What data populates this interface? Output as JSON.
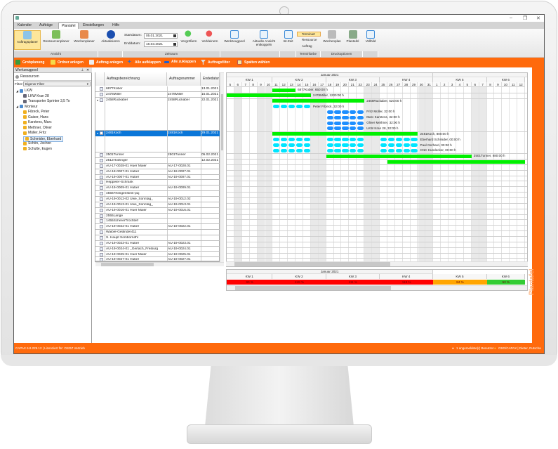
{
  "window": {
    "minimize": "–",
    "restore": "❐",
    "close": "✕"
  },
  "menu": {
    "tabs": [
      "Kalender",
      "Aufträge",
      "Plantafel",
      "Einstellungen",
      "Hilfe"
    ],
    "active": "Plantafel"
  },
  "ribbon": {
    "auftragsplaner": "Auftragsplaner",
    "ressourcenplaner": "Ressourcenplaner",
    "wochenplaner": "Wochenplaner",
    "group_ansicht": "Ansicht",
    "aktualisieren": "Aktualisieren",
    "startdatum_label": "Startdatum:",
    "startdatum": "05.01.2021",
    "enddatum_label": "Enddatum:",
    "enddatum": "16.03.2021",
    "vergroessern": "Vergrößern",
    "verkleinern": "Verkleinern",
    "group_zeitraum": "Zeitraum",
    "werkzeugpool": "Werkzeugpool",
    "entkoppeln": "Aktuelle Ansicht entkoppeln",
    "istzeit": "Ist-Zeit",
    "terminart": "Terminart",
    "ressource": "Ressource",
    "auftrag": "Auftrag",
    "group_terminfarbe": "Terminfarbe",
    "wochenplan": "Wochenplan",
    "plantafel": "Plantafel",
    "group_druck": "Druckoptionen",
    "vollbild": "Vollbild"
  },
  "toolbar": [
    "Grobplanung",
    "Ordner anlegen",
    "Auftrag anlegen",
    "Alle aufklappen",
    "Alle zuklappen",
    "Auftragsfilter",
    "Spalten wählen"
  ],
  "werkzeugpool": {
    "title": "Werkzeugpool",
    "ressourcen": "Ressourcen",
    "filter_label": "Filter:",
    "filter_value": "Eigener Filter",
    "tree": [
      {
        "label": "LKW",
        "level": 0,
        "type": "group"
      },
      {
        "label": "LKW Kran 28",
        "level": 1,
        "type": "vehicle"
      },
      {
        "label": "Transporter Sprinter 3,5 To",
        "level": 1,
        "type": "vehicle"
      },
      {
        "label": "Monteur",
        "level": 0,
        "type": "group"
      },
      {
        "label": "Filzeck, Peter",
        "level": 1,
        "type": "person"
      },
      {
        "label": "Gaiser, Hans",
        "level": 1,
        "type": "person"
      },
      {
        "label": "Karstens, Marc",
        "level": 1,
        "type": "person"
      },
      {
        "label": "Methner, Oliver",
        "level": 1,
        "type": "person"
      },
      {
        "label": "Müller, Fritz",
        "level": 1,
        "type": "person"
      },
      {
        "label": "Schmider, Eberhard",
        "level": 1,
        "type": "person",
        "selected": true
      },
      {
        "label": "Schön, Jochen",
        "level": 1,
        "type": "person"
      },
      {
        "label": "Schulte, Eugen",
        "level": 1,
        "type": "person"
      }
    ]
  },
  "table": {
    "columns": [
      "Auftragsbezeichnung",
      "Auftragsnummer",
      "Endedatum"
    ],
    "rows": [
      {
        "name": "6877Kober",
        "nr": "",
        "end": "13.01.2021",
        "span": 1
      },
      {
        "name": "2478Miller",
        "nr": "2478Miller",
        "end": "15.01.2021",
        "span": 1
      },
      {
        "name": "2458Ruckaber",
        "nr": "2458Ruckaber",
        "end": "22.01.2021",
        "span": 6,
        "expanded": true
      },
      {
        "name": "2481Koch",
        "nr": "2481Koch",
        "end": "29.01.2021",
        "span": 4,
        "expanded": true,
        "selected": true
      },
      {
        "name": "2501Tunner",
        "nr": "2501Tunner",
        "end": "05.02.2021",
        "span": 1
      },
      {
        "name": "2512Holzinger",
        "nr": "",
        "end": "12.02.2021",
        "span": 1
      },
      {
        "name": "AU-17-0028-01 Huer Maier",
        "nr": "AU-17-0028.01",
        "end": "",
        "span": 1
      },
      {
        "name": "AU-18-0007-01 Huber",
        "nr": "AU-18-0007.01",
        "end": "",
        "span": 1
      },
      {
        "name": "AU-19-0007-01 Huber",
        "nr": "AU-19-0007.01",
        "end": "",
        "span": 1
      },
      {
        "name": "Heppeler-Schrank",
        "nr": "",
        "end": "",
        "span": 1
      },
      {
        "name": "AU-19-0009-01 Huber",
        "nr": "AU-19-0009.01",
        "end": "",
        "span": 1
      },
      {
        "name": "45567Klingenstein-puj",
        "nr": "",
        "end": "",
        "span": 1
      },
      {
        "name": "AU-19-0012-02 Uwe_Sonntag_",
        "nr": "AU-19-0012.02",
        "end": "",
        "span": 1
      },
      {
        "name": "AU-19-0013-01 Uwe_Sonntag_",
        "nr": "AU-19-0013.01",
        "end": "",
        "span": 1
      },
      {
        "name": "AU-19-0016-01 Huer Maier",
        "nr": "AU-19-0016.01",
        "end": "",
        "span": 1
      },
      {
        "name": "2555Lange",
        "nr": "",
        "end": "",
        "span": 1
      },
      {
        "name": "1455SchererTrochtelf",
        "nr": "",
        "end": "",
        "span": 1
      },
      {
        "name": "AU-19-0022-01 Huber",
        "nr": "AU-19-0022.01",
        "end": "",
        "span": 1
      },
      {
        "name": "Waibel-Geländer411",
        "nr": "",
        "end": "",
        "span": 1
      },
      {
        "name": "S. Haupt Somborndhl",
        "nr": "",
        "end": "",
        "span": 1
      },
      {
        "name": "AU-19-0023-01 Huber",
        "nr": "AU-19-0023.01",
        "end": "",
        "span": 1
      },
      {
        "name": "AU-19-0024-01 _Gerlach_Freiburg",
        "nr": "AU-19-0024.01",
        "end": "",
        "span": 1
      },
      {
        "name": "AU-19-0025-01 Huer Maier",
        "nr": "AU-19-0025.01",
        "end": "",
        "span": 1
      },
      {
        "name": "AU-19-0027-01 Huber",
        "nr": "AU-19-0027.01",
        "end": "",
        "span": 1
      }
    ]
  },
  "gantt": {
    "month": "Januar 2021",
    "weeks": [
      {
        "label": "KW 1",
        "from": "2021-01-05",
        "to": "2021-01-10"
      },
      {
        "label": "KW 2",
        "from": "2021-01-11",
        "to": "2021-01-17"
      },
      {
        "label": "KW 3",
        "from": "2021-01-18",
        "to": "2021-01-24"
      },
      {
        "label": "KW 4",
        "from": "2021-01-25",
        "to": "2021-01-31"
      },
      {
        "label": "KW 5",
        "from": "2021-02-01",
        "to": "2021-02-07"
      },
      {
        "label": "KW 6",
        "from": "2021-02-08",
        "to": "2021-02-12"
      }
    ],
    "first_day": "2021-01-05",
    "last_day": "2021-02-12",
    "non_working_days": [
      "2021-01-06",
      "2021-01-09",
      "2021-01-10",
      "2021-01-16",
      "2021-01-17",
      "2021-01-23",
      "2021-01-24",
      "2021-01-30",
      "2021-01-31",
      "2021-02-06",
      "2021-02-07"
    ],
    "colors": {
      "order": "#00f000",
      "resource": "#00e5ff",
      "vehicle_resource": "#1e8fff"
    },
    "bars": [
      {
        "row": 0,
        "kind": "order",
        "from": "2021-01-11",
        "to": "2021-01-13",
        "label": "6877Kober, 650:00 h"
      },
      {
        "row": 1,
        "kind": "order",
        "from": "2021-01-05",
        "to": "2021-01-15",
        "label": "2478Miller, 1200:00 h"
      },
      {
        "row": 2,
        "kind": "order",
        "from": "2021-01-11",
        "to": "2021-01-22",
        "label": "2458Ruckaber, 520:00 h"
      },
      {
        "row": 3,
        "kind": "resource",
        "days": [
          "2021-01-11",
          "2021-01-12",
          "2021-01-13",
          "2021-01-14",
          "2021-01-15"
        ],
        "label": "Peter Filzeck, 32:00 h"
      },
      {
        "row": 4,
        "kind": "vehicle_resource",
        "days": [
          "2021-01-18",
          "2021-01-19",
          "2021-01-20",
          "2021-01-21",
          "2021-01-22"
        ],
        "label": "Fritz Müller, 32:00 h"
      },
      {
        "row": 5,
        "kind": "vehicle_resource",
        "days": [
          "2021-01-18",
          "2021-01-19",
          "2021-01-20",
          "2021-01-21",
          "2021-01-22"
        ],
        "label": "Marc Karstens, 32:00 h"
      },
      {
        "row": 6,
        "kind": "vehicle_resource",
        "days": [
          "2021-01-18",
          "2021-01-19",
          "2021-01-20",
          "2021-01-21",
          "2021-01-22"
        ],
        "label": "Oliver Methner, 32:00 h"
      },
      {
        "row": 7,
        "kind": "vehicle_resource",
        "days": [
          "2021-01-18",
          "2021-01-19",
          "2021-01-20",
          "2021-01-21",
          "2021-01-22"
        ],
        "label": "LKW Kran 28, 32:00 h"
      },
      {
        "row": 8,
        "kind": "order",
        "from": "2021-01-11",
        "to": "2021-01-29",
        "label": "2481Koch, 800:00 h"
      },
      {
        "row": 9,
        "kind": "resource",
        "days": [
          "2021-01-11",
          "2021-01-12",
          "2021-01-13",
          "2021-01-14",
          "2021-01-15",
          "2021-01-18",
          "2021-01-19",
          "2021-01-20",
          "2021-01-21",
          "2021-01-22",
          "2021-01-25",
          "2021-01-26",
          "2021-01-27",
          "2021-01-28",
          "2021-01-29"
        ],
        "label": "Eberhard Schmider, 00:00 h"
      },
      {
        "row": 10,
        "kind": "resource",
        "days": [
          "2021-01-11",
          "2021-01-12",
          "2021-01-13",
          "2021-01-14",
          "2021-01-15",
          "2021-01-18",
          "2021-01-19",
          "2021-01-20",
          "2021-01-21",
          "2021-01-22",
          "2021-01-25",
          "2021-01-26",
          "2021-01-27",
          "2021-01-28",
          "2021-01-29"
        ],
        "label": "Paul Gerhard, 00:00 h"
      },
      {
        "row": 11,
        "kind": "resource",
        "days": [
          "2021-01-11",
          "2021-01-12",
          "2021-01-13",
          "2021-01-14",
          "2021-01-15",
          "2021-01-18",
          "2021-01-19",
          "2021-01-20",
          "2021-01-21",
          "2021-01-22",
          "2021-01-25",
          "2021-01-26",
          "2021-01-27",
          "2021-01-28",
          "2021-01-29"
        ],
        "label": "CNC Hundecker, 00:00 h"
      },
      {
        "row": 12,
        "kind": "order",
        "from": "2021-01-18",
        "to": "2021-02-05",
        "label": "2501Tunner, 680:00 h"
      },
      {
        "row": 13,
        "kind": "order",
        "from": "2021-01-26",
        "to": "2021-02-12",
        "label": ""
      }
    ]
  },
  "capacity": {
    "month": "Januar 2021",
    "weeks": [
      "KW 1",
      "KW 2",
      "KW 3",
      "KW 4",
      "KW 5",
      "KW 6"
    ],
    "values": [
      "90 %",
      "249 %",
      "111 %",
      "118 %",
      "84 %",
      "53 %"
    ],
    "colors": [
      "#ff0000",
      "#ff0000",
      "#ff0000",
      "#ff0000",
      "#ffa500",
      "#33cc33"
    ]
  },
  "side_tab": "Plantafel",
  "status": {
    "left": "CAPAX 6.8.229.12 | Lizenziert für: OSGZ Vertrieb",
    "users": "1 angemeldete(r) Benutzer",
    "user": "OSG/CAPAX | Dieter, Rutscha"
  }
}
